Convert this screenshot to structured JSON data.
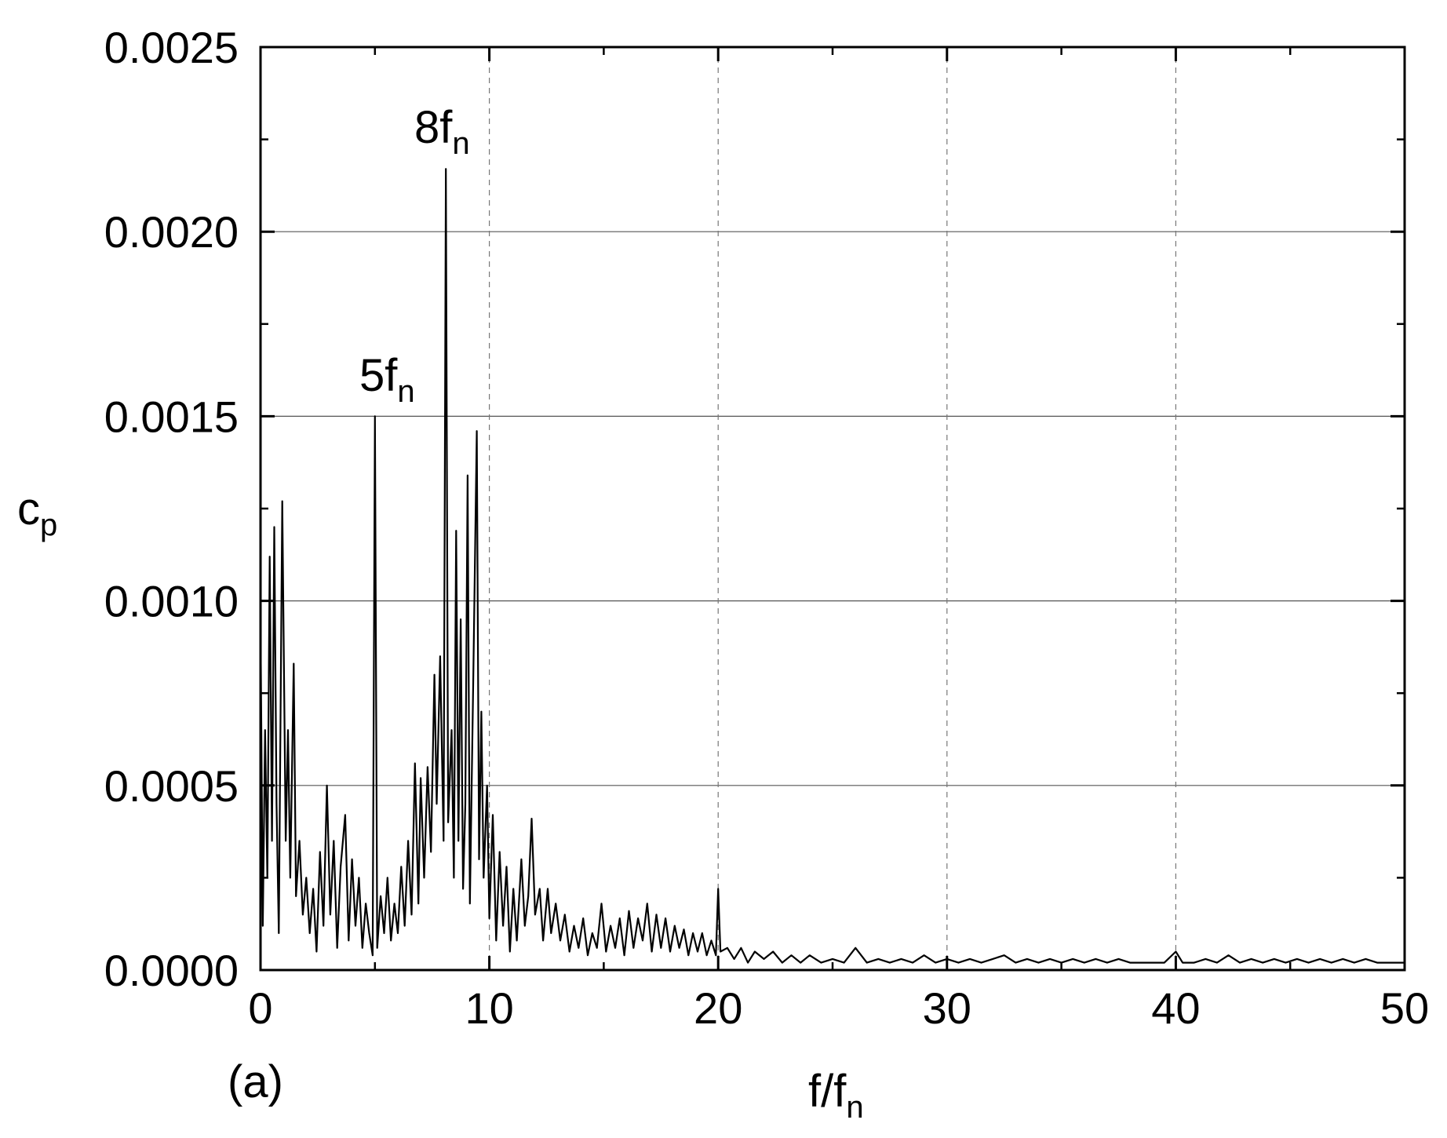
{
  "chart_data": {
    "type": "line",
    "title": "",
    "panel_label": "(a)",
    "xlabel": {
      "main": "f/f",
      "sub": "n"
    },
    "ylabel": {
      "main": "c",
      "sub": "p"
    },
    "xlim": [
      0,
      50
    ],
    "ylim": [
      0,
      0.0025
    ],
    "x_ticks": [
      0,
      10,
      20,
      30,
      40,
      50
    ],
    "x_tick_labels": [
      "0",
      "10",
      "20",
      "30",
      "40",
      "50"
    ],
    "y_ticks": [
      0,
      0.0005,
      0.001,
      0.0015,
      0.002,
      0.0025
    ],
    "y_tick_labels": [
      "0.0000",
      "0.0005",
      "0.0010",
      "0.0015",
      "0.0020",
      "0.0025"
    ],
    "grid": {
      "horizontal": "solid",
      "vertical": "dashed"
    },
    "line_color": "#000000",
    "annotations": [
      {
        "main": "5f",
        "sub": "n",
        "x": 5.0,
        "y": 0.0015
      },
      {
        "main": "8f",
        "sub": "n",
        "x": 8.1,
        "y": 0.00217
      }
    ],
    "series": [
      {
        "name": "",
        "points": [
          [
            0.0,
            0.00095
          ],
          [
            0.1,
            0.00012
          ],
          [
            0.2,
            0.00065
          ],
          [
            0.3,
            0.00025
          ],
          [
            0.4,
            0.00112
          ],
          [
            0.5,
            0.00035
          ],
          [
            0.6,
            0.0012
          ],
          [
            0.7,
            0.00045
          ],
          [
            0.8,
            0.0001
          ],
          [
            0.95,
            0.00127
          ],
          [
            1.1,
            0.00035
          ],
          [
            1.2,
            0.00065
          ],
          [
            1.3,
            0.00025
          ],
          [
            1.45,
            0.00083
          ],
          [
            1.55,
            0.0002
          ],
          [
            1.7,
            0.00035
          ],
          [
            1.85,
            0.00015
          ],
          [
            2.0,
            0.00025
          ],
          [
            2.15,
            0.0001
          ],
          [
            2.3,
            0.00022
          ],
          [
            2.45,
            5e-05
          ],
          [
            2.6,
            0.00032
          ],
          [
            2.75,
            0.00012
          ],
          [
            2.9,
            0.0005
          ],
          [
            3.05,
            0.00015
          ],
          [
            3.2,
            0.00035
          ],
          [
            3.35,
            6e-05
          ],
          [
            3.5,
            0.00028
          ],
          [
            3.7,
            0.00042
          ],
          [
            3.85,
            8e-05
          ],
          [
            4.0,
            0.0003
          ],
          [
            4.15,
            0.00012
          ],
          [
            4.3,
            0.00025
          ],
          [
            4.45,
            6e-05
          ],
          [
            4.6,
            0.00018
          ],
          [
            4.75,
            0.0001
          ],
          [
            4.9,
            4e-05
          ],
          [
            5.0,
            0.0015
          ],
          [
            5.1,
            6e-05
          ],
          [
            5.25,
            0.0002
          ],
          [
            5.4,
            0.0001
          ],
          [
            5.55,
            0.00025
          ],
          [
            5.7,
            8e-05
          ],
          [
            5.85,
            0.00018
          ],
          [
            6.0,
            0.0001
          ],
          [
            6.15,
            0.00028
          ],
          [
            6.3,
            0.00012
          ],
          [
            6.45,
            0.00035
          ],
          [
            6.6,
            0.00015
          ],
          [
            6.75,
            0.00056
          ],
          [
            6.9,
            0.00018
          ],
          [
            7.0,
            0.00052
          ],
          [
            7.15,
            0.00025
          ],
          [
            7.3,
            0.00055
          ],
          [
            7.45,
            0.00032
          ],
          [
            7.6,
            0.0008
          ],
          [
            7.7,
            0.00045
          ],
          [
            7.85,
            0.00085
          ],
          [
            8.0,
            0.00035
          ],
          [
            8.1,
            0.00217
          ],
          [
            8.2,
            0.0004
          ],
          [
            8.35,
            0.00065
          ],
          [
            8.45,
            0.00025
          ],
          [
            8.55,
            0.00119
          ],
          [
            8.65,
            0.00035
          ],
          [
            8.75,
            0.00095
          ],
          [
            8.85,
            0.00022
          ],
          [
            8.95,
            0.00045
          ],
          [
            9.05,
            0.00134
          ],
          [
            9.15,
            0.00018
          ],
          [
            9.3,
            0.0008
          ],
          [
            9.45,
            0.00146
          ],
          [
            9.55,
            0.0003
          ],
          [
            9.65,
            0.0007
          ],
          [
            9.75,
            0.00025
          ],
          [
            9.9,
            0.0005
          ],
          [
            10.0,
            0.00014
          ],
          [
            10.15,
            0.00042
          ],
          [
            10.3,
            8e-05
          ],
          [
            10.45,
            0.00032
          ],
          [
            10.6,
            0.00012
          ],
          [
            10.75,
            0.00028
          ],
          [
            10.9,
            5e-05
          ],
          [
            11.05,
            0.00022
          ],
          [
            11.2,
            8e-05
          ],
          [
            11.4,
            0.0003
          ],
          [
            11.55,
            0.00012
          ],
          [
            11.7,
            0.0002
          ],
          [
            11.85,
            0.00041
          ],
          [
            12.0,
            0.00015
          ],
          [
            12.2,
            0.00022
          ],
          [
            12.35,
            8e-05
          ],
          [
            12.55,
            0.00022
          ],
          [
            12.7,
            0.0001
          ],
          [
            12.9,
            0.00018
          ],
          [
            13.1,
            8e-05
          ],
          [
            13.3,
            0.00015
          ],
          [
            13.5,
            5e-05
          ],
          [
            13.7,
            0.00012
          ],
          [
            13.9,
            6e-05
          ],
          [
            14.1,
            0.00014
          ],
          [
            14.3,
            4e-05
          ],
          [
            14.5,
            0.0001
          ],
          [
            14.7,
            6e-05
          ],
          [
            14.9,
            0.00018
          ],
          [
            15.1,
            5e-05
          ],
          [
            15.3,
            0.00012
          ],
          [
            15.5,
            6e-05
          ],
          [
            15.7,
            0.00014
          ],
          [
            15.9,
            4e-05
          ],
          [
            16.1,
            0.00016
          ],
          [
            16.3,
            6e-05
          ],
          [
            16.5,
            0.00014
          ],
          [
            16.7,
            8e-05
          ],
          [
            16.9,
            0.00018
          ],
          [
            17.1,
            5e-05
          ],
          [
            17.3,
            0.00015
          ],
          [
            17.5,
            6e-05
          ],
          [
            17.7,
            0.00014
          ],
          [
            17.9,
            5e-05
          ],
          [
            18.1,
            0.00012
          ],
          [
            18.3,
            6e-05
          ],
          [
            18.5,
            0.00011
          ],
          [
            18.7,
            4e-05
          ],
          [
            18.9,
            0.0001
          ],
          [
            19.1,
            5e-05
          ],
          [
            19.3,
            0.0001
          ],
          [
            19.5,
            4e-05
          ],
          [
            19.7,
            8e-05
          ],
          [
            19.9,
            4e-05
          ],
          [
            20.0,
            0.00022
          ],
          [
            20.1,
            5e-05
          ],
          [
            20.4,
            6e-05
          ],
          [
            20.7,
            3e-05
          ],
          [
            21.0,
            6e-05
          ],
          [
            21.3,
            2e-05
          ],
          [
            21.6,
            5e-05
          ],
          [
            22.0,
            3e-05
          ],
          [
            22.4,
            5e-05
          ],
          [
            22.8,
            2e-05
          ],
          [
            23.2,
            4e-05
          ],
          [
            23.6,
            2e-05
          ],
          [
            24.0,
            4e-05
          ],
          [
            24.5,
            2e-05
          ],
          [
            25.0,
            3e-05
          ],
          [
            25.5,
            2e-05
          ],
          [
            26.0,
            6e-05
          ],
          [
            26.5,
            2e-05
          ],
          [
            27.0,
            3e-05
          ],
          [
            27.5,
            2e-05
          ],
          [
            28.0,
            3e-05
          ],
          [
            28.5,
            2e-05
          ],
          [
            29.0,
            4e-05
          ],
          [
            29.5,
            2e-05
          ],
          [
            30.0,
            3e-05
          ],
          [
            30.5,
            2e-05
          ],
          [
            31.0,
            3e-05
          ],
          [
            31.5,
            2e-05
          ],
          [
            32.0,
            3e-05
          ],
          [
            32.5,
            4e-05
          ],
          [
            33.0,
            2e-05
          ],
          [
            33.5,
            3e-05
          ],
          [
            34.0,
            2e-05
          ],
          [
            34.5,
            3e-05
          ],
          [
            35.0,
            2e-05
          ],
          [
            35.5,
            3e-05
          ],
          [
            36.0,
            2e-05
          ],
          [
            36.5,
            3e-05
          ],
          [
            37.0,
            2e-05
          ],
          [
            37.5,
            3e-05
          ],
          [
            38.0,
            2e-05
          ],
          [
            38.5,
            2e-05
          ],
          [
            39.0,
            2e-05
          ],
          [
            39.5,
            2e-05
          ],
          [
            40.0,
            5e-05
          ],
          [
            40.3,
            2e-05
          ],
          [
            40.8,
            2e-05
          ],
          [
            41.3,
            3e-05
          ],
          [
            41.8,
            2e-05
          ],
          [
            42.3,
            4e-05
          ],
          [
            42.8,
            2e-05
          ],
          [
            43.3,
            3e-05
          ],
          [
            43.8,
            2e-05
          ],
          [
            44.3,
            3e-05
          ],
          [
            44.8,
            2e-05
          ],
          [
            45.3,
            3e-05
          ],
          [
            45.8,
            2e-05
          ],
          [
            46.3,
            3e-05
          ],
          [
            46.8,
            2e-05
          ],
          [
            47.3,
            3e-05
          ],
          [
            47.8,
            2e-05
          ],
          [
            48.3,
            3e-05
          ],
          [
            48.8,
            2e-05
          ],
          [
            49.3,
            2e-05
          ],
          [
            50.0,
            2e-05
          ]
        ]
      }
    ]
  }
}
